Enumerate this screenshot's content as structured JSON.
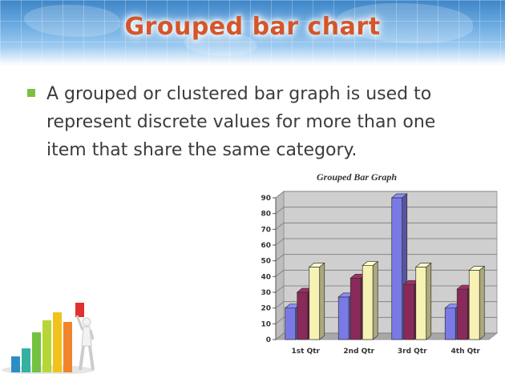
{
  "slide": {
    "title": "Grouped bar chart",
    "body": "A grouped or clustered bar graph is used to represent discrete values for more than one item that share the same category."
  },
  "chart_data": {
    "type": "bar",
    "title": "Grouped Bar Graph",
    "categories": [
      "1st Qtr",
      "2nd Qtr",
      "3rd Qtr",
      "4th Qtr"
    ],
    "series": [
      {
        "color": "#7a7ae6",
        "values": [
          20,
          27,
          90,
          20
        ]
      },
      {
        "color": "#8a2a5a",
        "values": [
          30,
          39,
          35,
          32
        ]
      },
      {
        "color": "#f7f2b4",
        "values": [
          46,
          47,
          46,
          44
        ]
      }
    ],
    "ylim": [
      0,
      90
    ],
    "yticks": [
      0,
      10,
      20,
      30,
      40,
      50,
      60,
      70,
      80,
      90
    ],
    "grid": true,
    "style": "3d"
  },
  "colors": {
    "title": "#d4562a",
    "bullet": "#7bc043",
    "text": "#3c3c3c",
    "plot_bg": "#cfcfcf"
  }
}
